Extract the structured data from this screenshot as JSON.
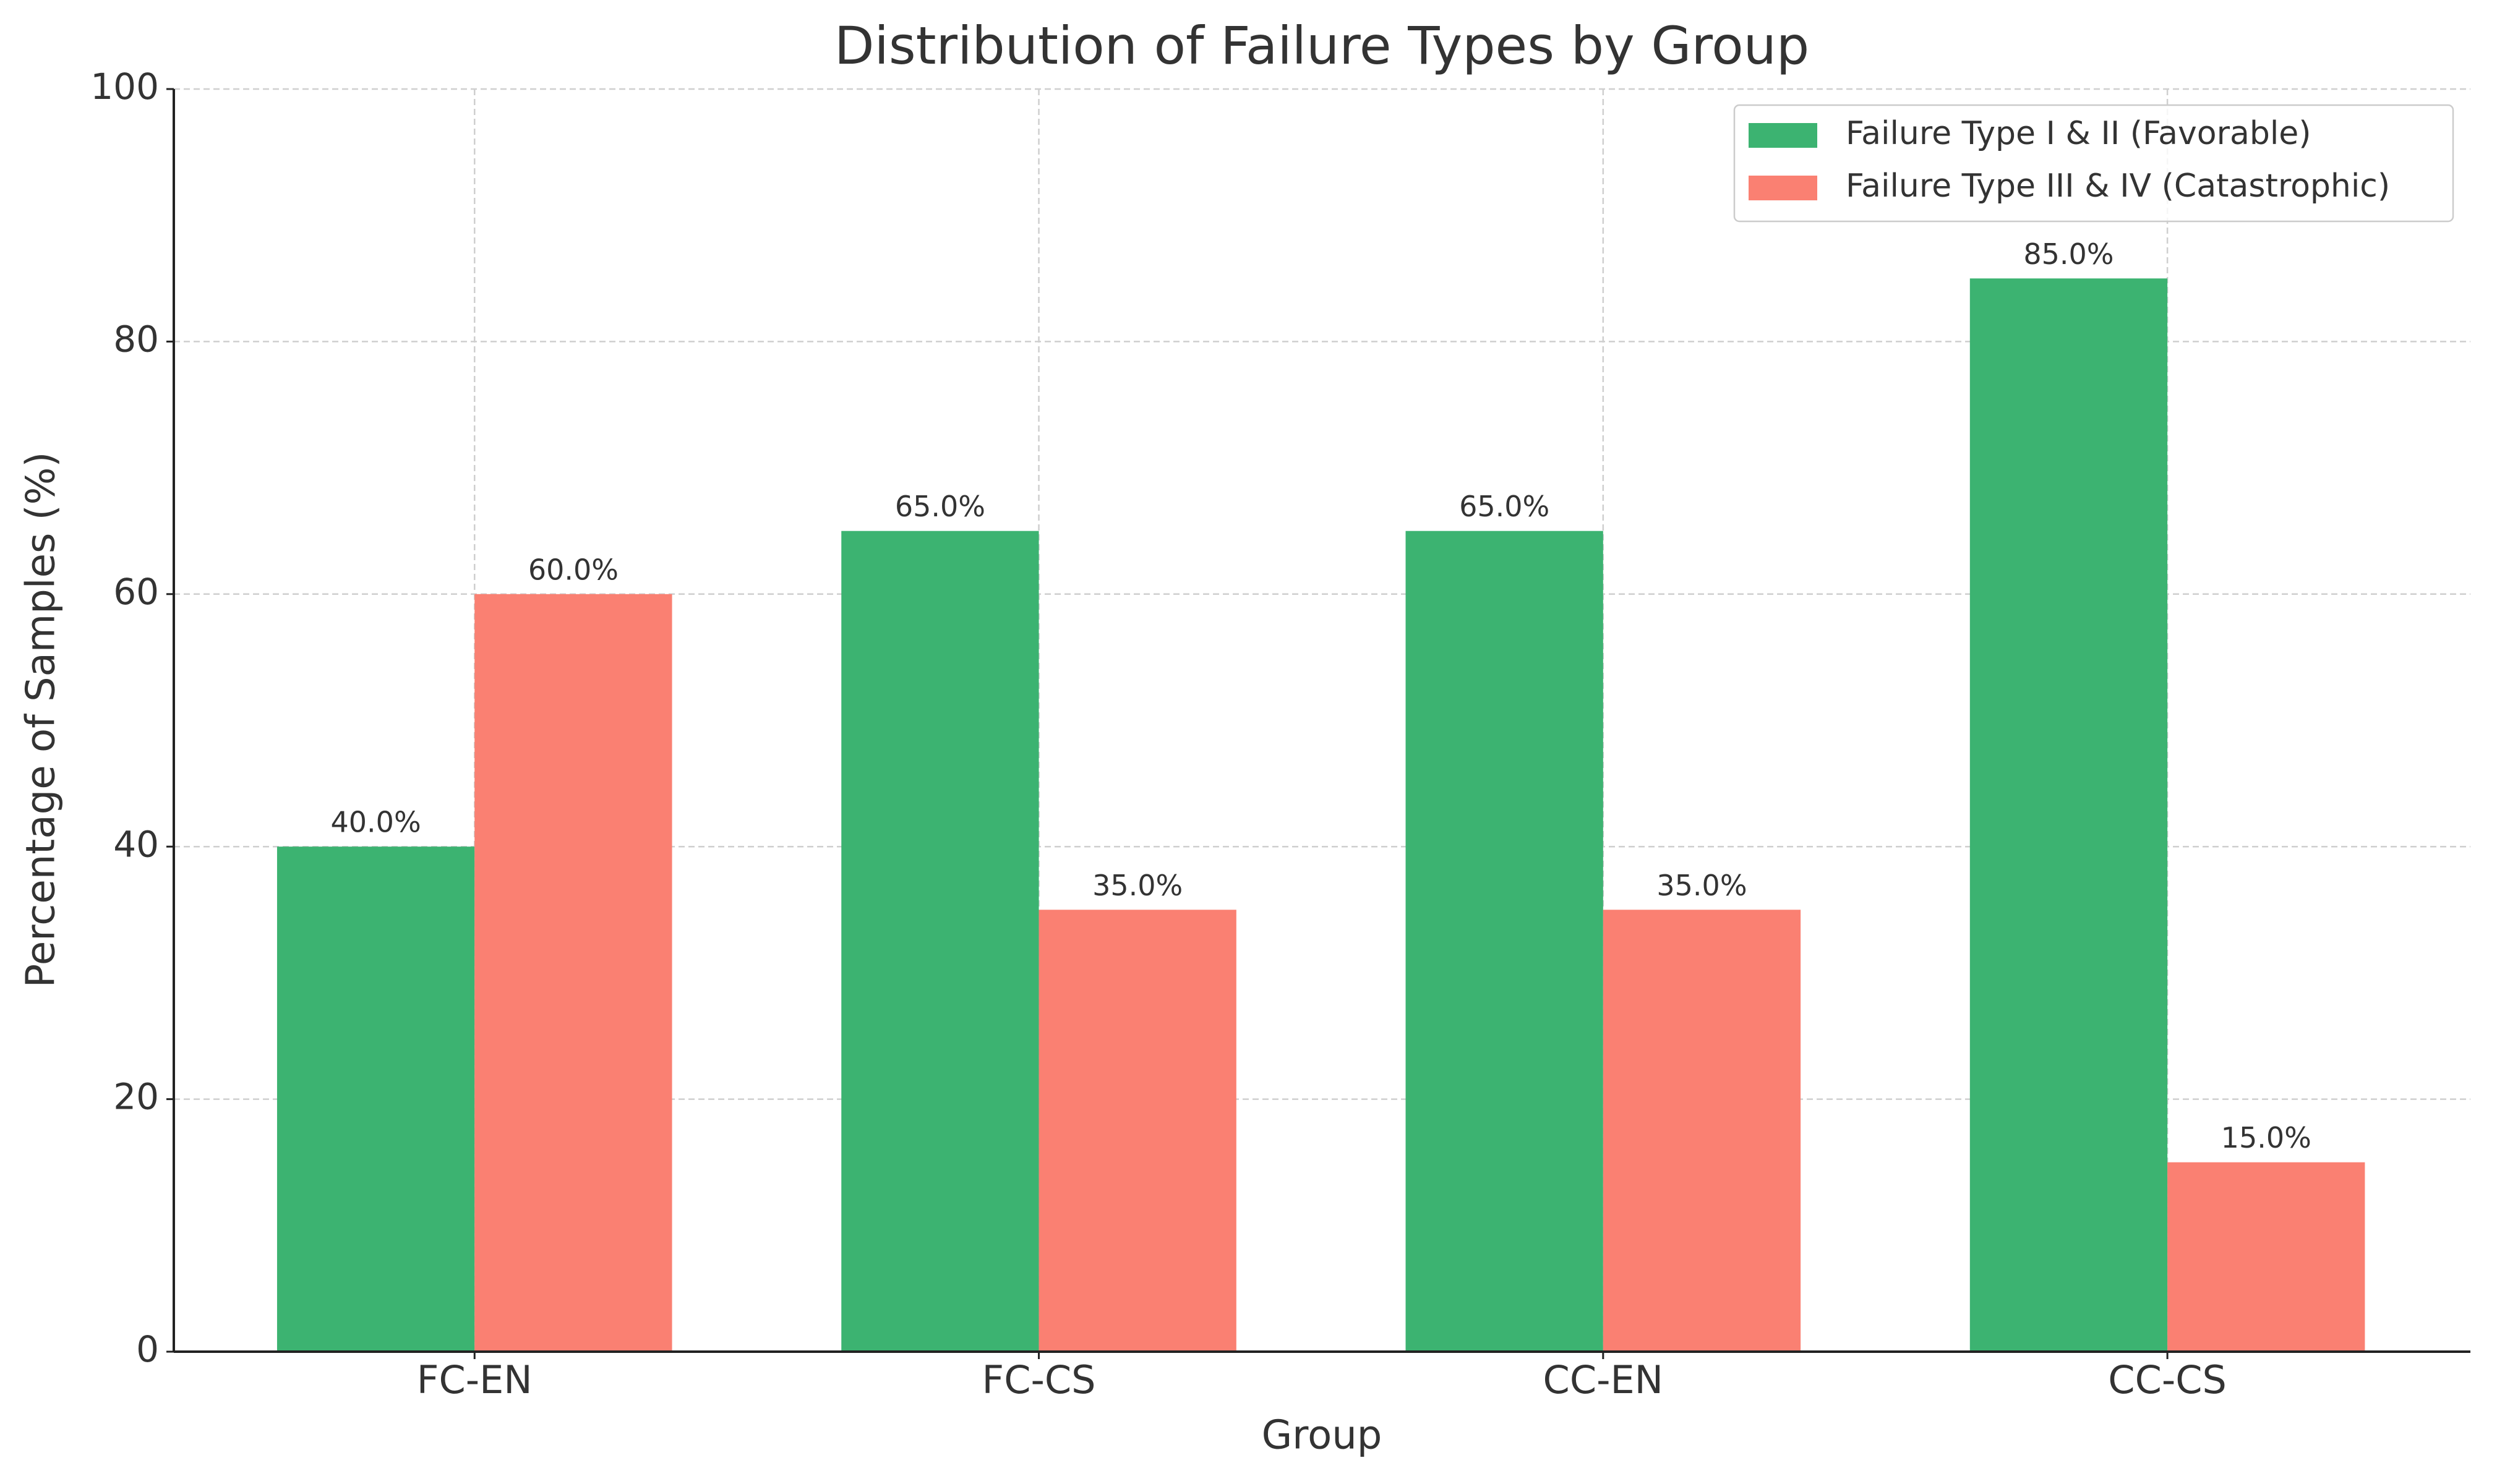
{
  "chart_data": {
    "type": "bar",
    "title": "Distribution of Failure Types by Group",
    "x_label": "Group",
    "y_label": "Percentage of Samples (%)",
    "categories": [
      "FC-EN",
      "FC-CS",
      "CC-EN",
      "CC-CS"
    ],
    "series": [
      {
        "name": "Failure Type I & II (Favorable)",
        "color": "#3cb371",
        "values": [
          40,
          65,
          65,
          85
        ],
        "value_labels": [
          "40.0%",
          "65.0%",
          "65.0%",
          "85.0%"
        ]
      },
      {
        "name": "Failure Type III & IV (Catastrophic)",
        "color": "#fa8072",
        "values": [
          60,
          35,
          35,
          15
        ],
        "value_labels": [
          "60.0%",
          "35.0%",
          "35.0%",
          "15.0%"
        ]
      }
    ],
    "ylim": [
      0,
      100
    ],
    "yticks": [
      0,
      20,
      40,
      60,
      80,
      100
    ],
    "grid": true,
    "legend": "upper right"
  }
}
